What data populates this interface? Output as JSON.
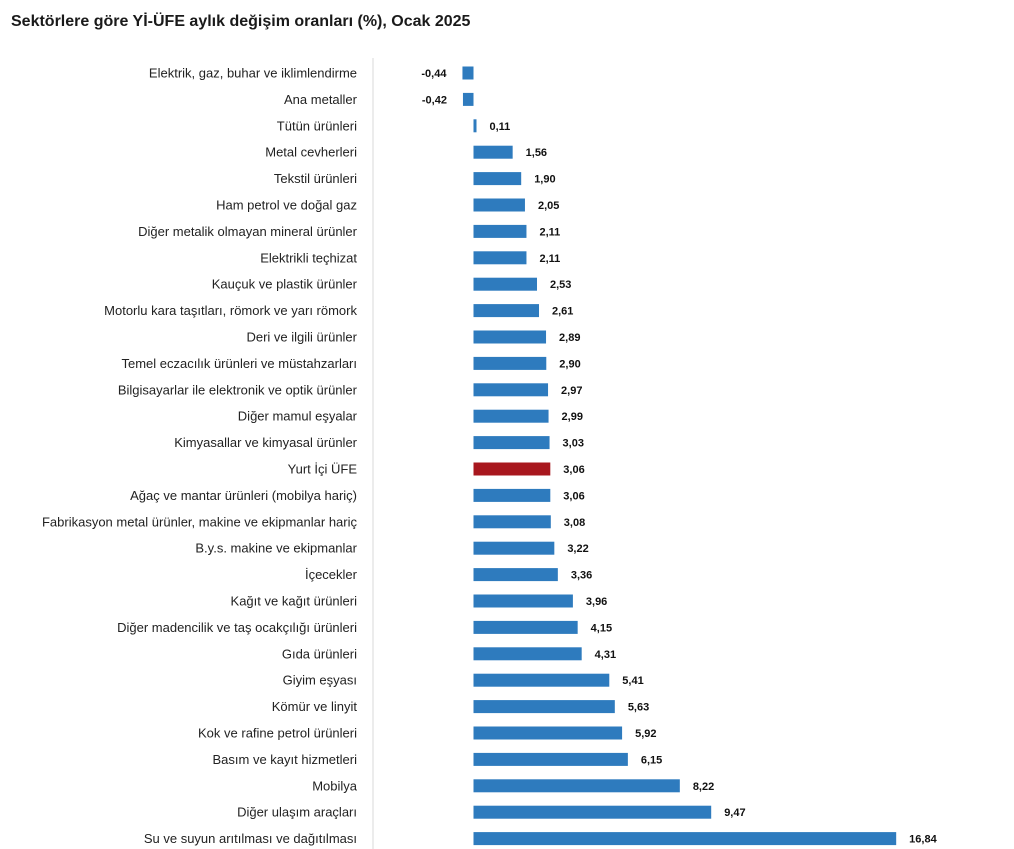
{
  "chart_data": {
    "type": "bar",
    "orientation": "horizontal",
    "title": "Sektörlere göre Yİ-ÜFE aylık değişim oranları (%), Ocak 2025",
    "xlabel": "",
    "ylabel": "",
    "grid": false,
    "legend": "none",
    "xlim": [
      -0.5,
      17.5
    ],
    "colors": {
      "default": "#2E7BBE",
      "highlight": "#A8171E",
      "axis_line": "#d9d9d9"
    },
    "highlight_category": "Yurt İçi ÜFE",
    "categories": [
      "Elektrik, gaz, buhar ve iklimlendirme",
      "Ana metaller",
      "Tütün ürünleri",
      "Metal cevherleri",
      "Tekstil ürünleri",
      "Ham petrol ve doğal gaz",
      "Diğer metalik olmayan mineral ürünler",
      "Elektrikli teçhizat",
      "Kauçuk ve plastik ürünler",
      "Motorlu kara taşıtları, römork ve yarı römork",
      "Deri ve ilgili ürünler",
      "Temel eczacılık ürünleri ve müstahzarları",
      "Bilgisayarlar ile elektronik ve optik ürünler",
      "Diğer mamul eşyalar",
      "Kimyasallar ve kimyasal ürünler",
      "Yurt İçi ÜFE",
      "Ağaç ve mantar ürünleri (mobilya hariç)",
      "Fabrikasyon metal ürünler, makine ve ekipmanlar hariç",
      "B.y.s. makine ve ekipmanlar",
      "İçecekler",
      "Kağıt ve kağıt ürünleri",
      "Diğer madencilik ve taş ocakçılığı ürünleri",
      "Gıda ürünleri",
      "Giyim eşyası",
      "Kömür ve linyit",
      "Kok ve rafine petrol ürünleri",
      "Basım ve kayıt hizmetleri",
      "Mobilya",
      "Diğer ulaşım araçları",
      "Su ve suyun arıtılması ve dağıtılması"
    ],
    "values": [
      -0.44,
      -0.42,
      0.11,
      1.56,
      1.9,
      2.05,
      2.11,
      2.11,
      2.53,
      2.61,
      2.89,
      2.9,
      2.97,
      2.99,
      3.03,
      3.06,
      3.06,
      3.08,
      3.22,
      3.36,
      3.96,
      4.15,
      4.31,
      5.41,
      5.63,
      5.92,
      6.15,
      8.22,
      9.47,
      16.84
    ],
    "value_labels": [
      "-0,44",
      "-0,42",
      "0,11",
      "1,56",
      "1,90",
      "2,05",
      "2,11",
      "2,11",
      "2,53",
      "2,61",
      "2,89",
      "2,90",
      "2,97",
      "2,99",
      "3,03",
      "3,06",
      "3,06",
      "3,08",
      "3,22",
      "3,36",
      "3,96",
      "4,15",
      "4,31",
      "5,41",
      "5,63",
      "5,92",
      "6,15",
      "8,22",
      "9,47",
      "16,84"
    ]
  }
}
